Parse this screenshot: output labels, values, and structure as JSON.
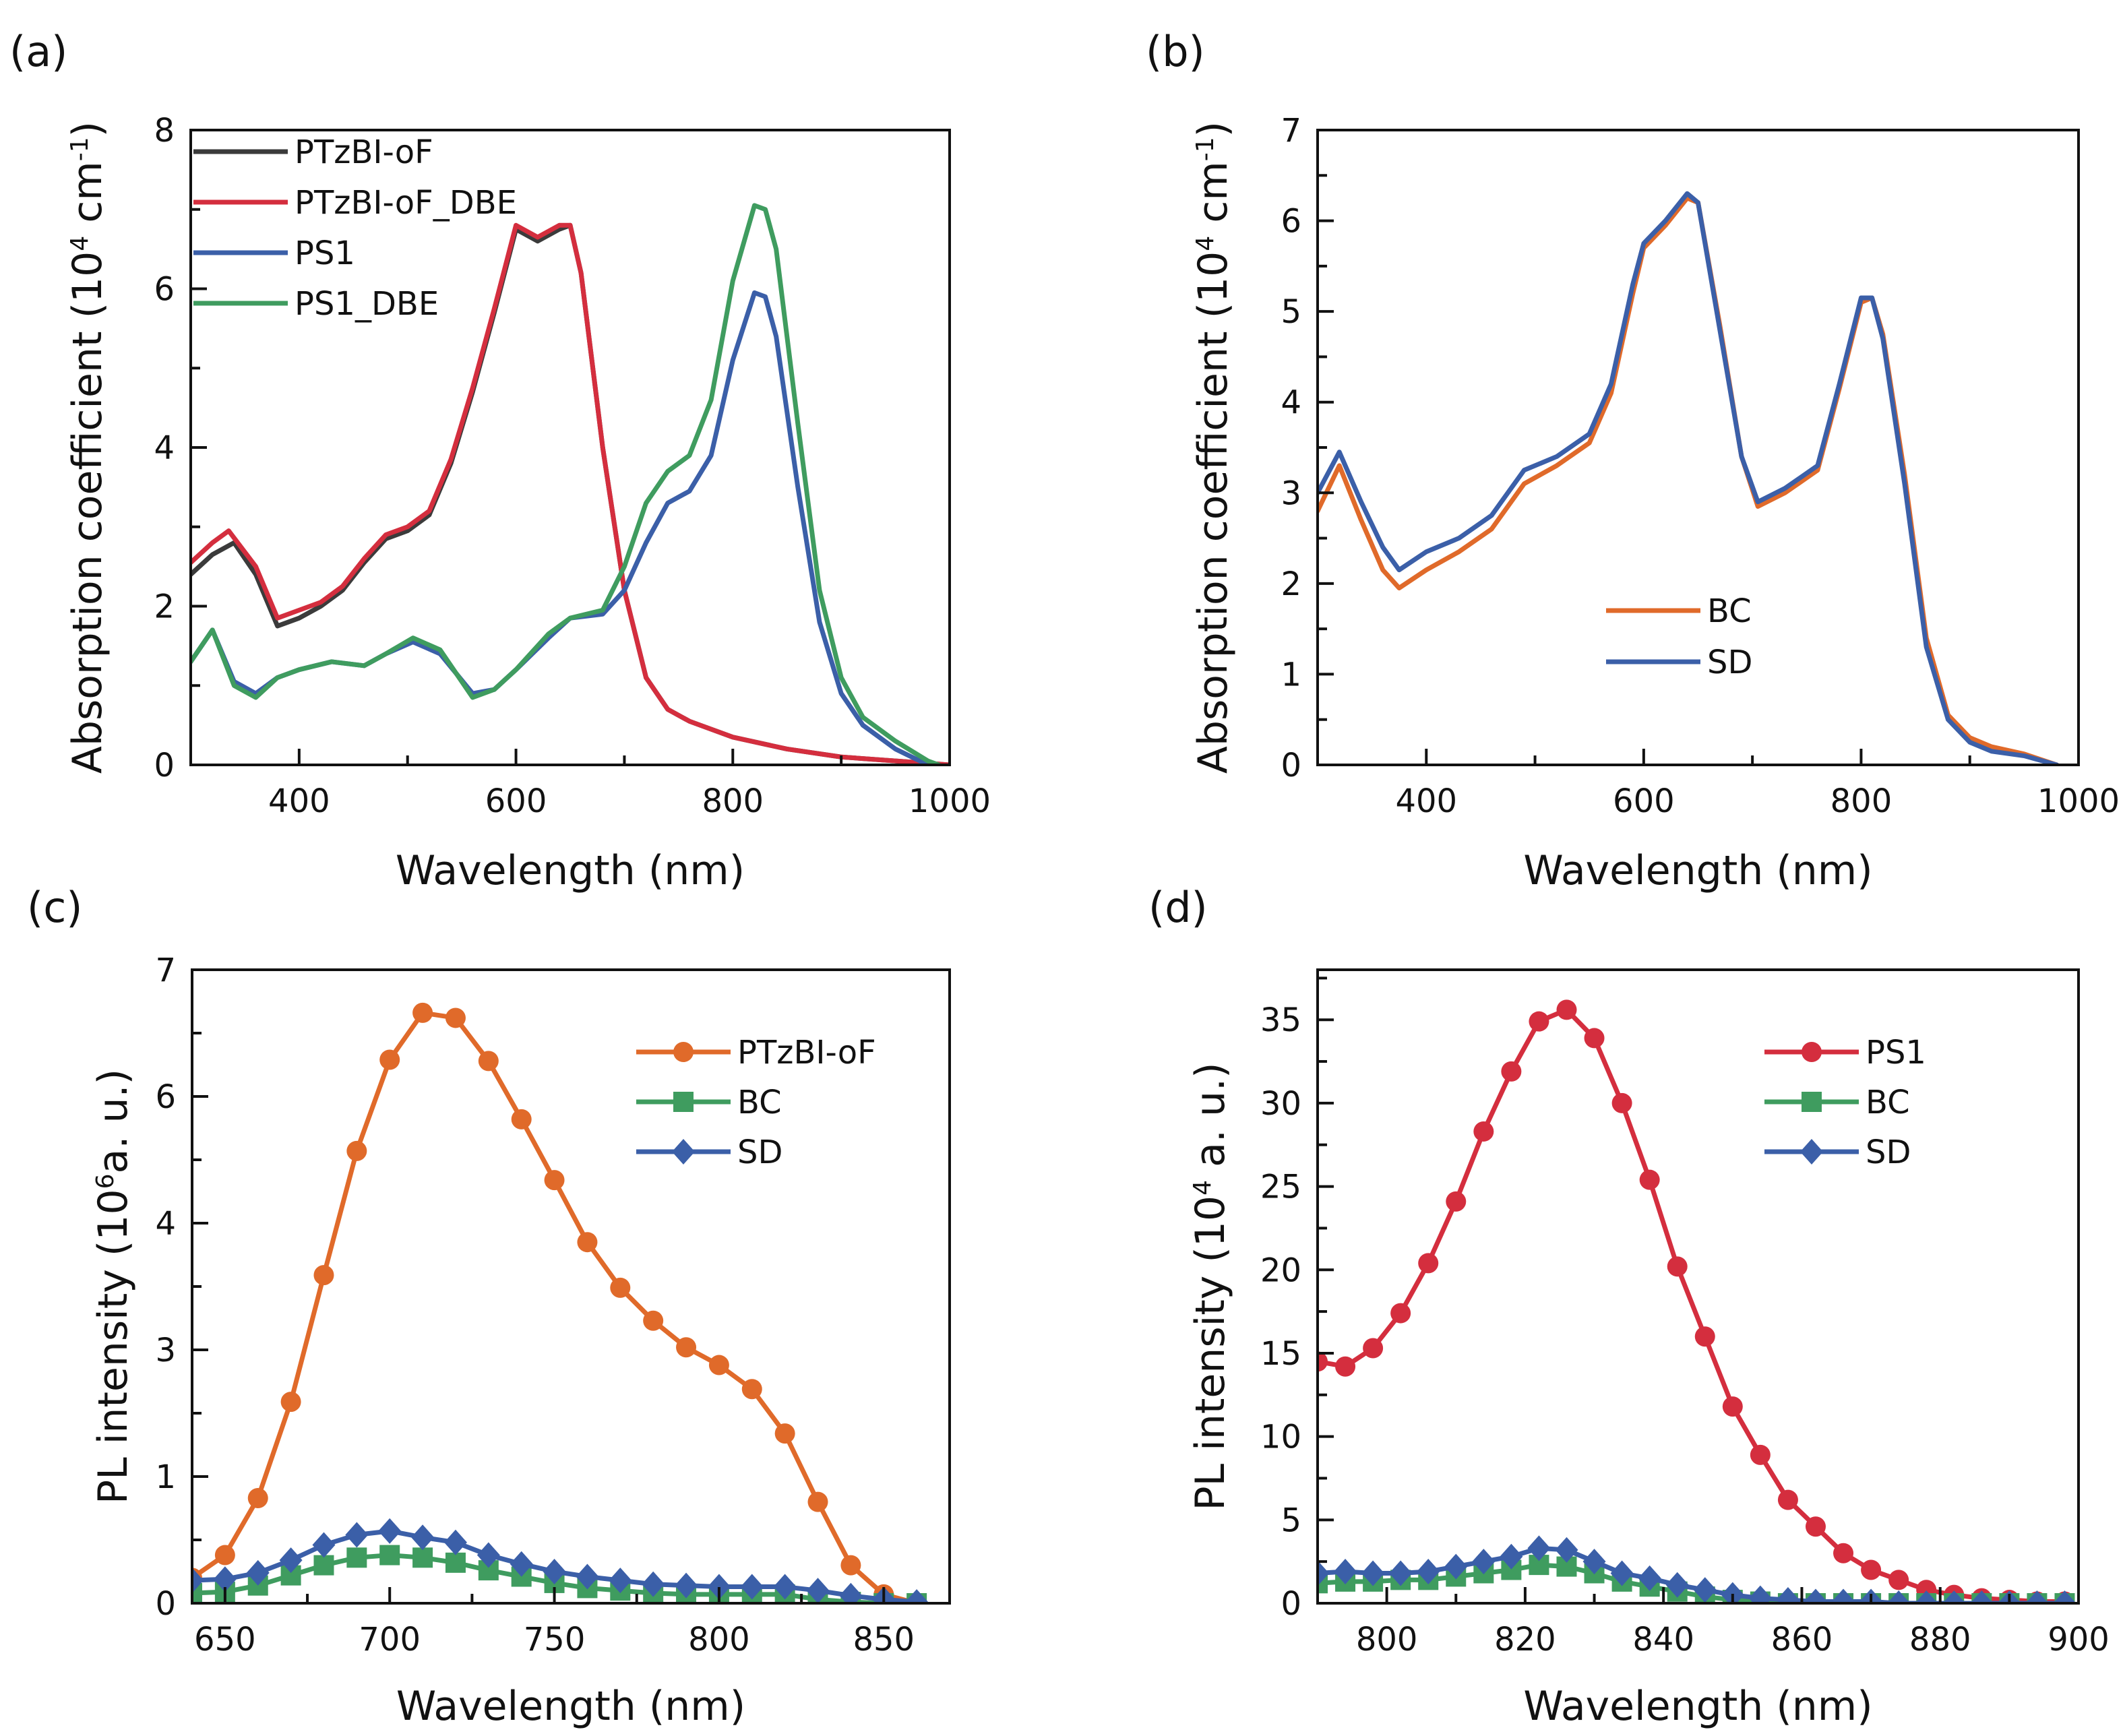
{
  "panel_labels": [
    "(a)",
    "(b)",
    "(c)",
    "(d)"
  ],
  "colors": {
    "black": "#3b3b3b",
    "red": "#d42e3e",
    "blue": "#3b5fa8",
    "green": "#3f9c5f",
    "orange": "#e06a2a",
    "axis": "#111111"
  },
  "chart_data": [
    {
      "type": "line",
      "xlabel": "Wavelength (nm)",
      "ylabel": {
        "pre": "Absorption coefficient (10",
        "sup": "4",
        "mid": " cm",
        "sup2": "-1",
        "post": ")"
      },
      "xlim": [
        300,
        1000
      ],
      "ylim": [
        0,
        8
      ],
      "xticks": [
        400,
        600,
        800,
        1000
      ],
      "yticks": [
        0,
        2,
        4,
        6,
        8
      ],
      "grid": false,
      "legend": "top-left",
      "series": [
        {
          "name": "PTzBI-oF",
          "color": "#3b3b3b",
          "marker": "none",
          "x": [
            300,
            320,
            340,
            360,
            380,
            400,
            420,
            440,
            460,
            480,
            500,
            520,
            540,
            560,
            580,
            600,
            620,
            640,
            650,
            660,
            680,
            700,
            720,
            740,
            760,
            800,
            850,
            900,
            950,
            1000
          ],
          "y": [
            2.4,
            2.65,
            2.8,
            2.4,
            1.75,
            1.85,
            2.0,
            2.2,
            2.55,
            2.85,
            2.95,
            3.15,
            3.8,
            4.7,
            5.7,
            6.75,
            6.6,
            6.75,
            6.8,
            6.2,
            4.0,
            2.2,
            1.1,
            0.7,
            0.55,
            0.35,
            0.2,
            0.1,
            0.05,
            0
          ]
        },
        {
          "name": "PTzBI-oF_DBE",
          "color": "#d42e3e",
          "marker": "none",
          "x": [
            300,
            320,
            335,
            360,
            380,
            400,
            420,
            440,
            460,
            480,
            500,
            520,
            540,
            560,
            580,
            600,
            620,
            640,
            650,
            660,
            680,
            700,
            720,
            740,
            760,
            800,
            850,
            900,
            950,
            1000
          ],
          "y": [
            2.55,
            2.8,
            2.95,
            2.5,
            1.85,
            1.95,
            2.05,
            2.25,
            2.6,
            2.9,
            3.0,
            3.2,
            3.85,
            4.75,
            5.75,
            6.8,
            6.65,
            6.8,
            6.8,
            6.2,
            4.0,
            2.2,
            1.1,
            0.7,
            0.55,
            0.35,
            0.2,
            0.1,
            0.05,
            0
          ]
        },
        {
          "name": "PS1",
          "color": "#3b5fa8",
          "marker": "none",
          "x": [
            300,
            320,
            340,
            360,
            380,
            400,
            430,
            460,
            480,
            505,
            530,
            560,
            580,
            600,
            630,
            650,
            680,
            700,
            720,
            740,
            760,
            780,
            800,
            820,
            830,
            840,
            860,
            880,
            900,
            920,
            950,
            980
          ],
          "y": [
            1.3,
            1.7,
            1.05,
            0.9,
            1.1,
            1.2,
            1.3,
            1.25,
            1.4,
            1.55,
            1.4,
            0.9,
            0.95,
            1.2,
            1.6,
            1.85,
            1.9,
            2.2,
            2.8,
            3.3,
            3.45,
            3.9,
            5.1,
            5.95,
            5.9,
            5.4,
            3.5,
            1.8,
            0.9,
            0.5,
            0.2,
            0
          ]
        },
        {
          "name": "PS1_DBE",
          "color": "#3f9c5f",
          "marker": "none",
          "x": [
            300,
            320,
            340,
            360,
            380,
            400,
            430,
            460,
            480,
            505,
            530,
            560,
            580,
            600,
            630,
            650,
            680,
            700,
            720,
            740,
            760,
            780,
            800,
            820,
            830,
            840,
            860,
            880,
            900,
            920,
            950,
            980,
            990
          ],
          "y": [
            1.3,
            1.7,
            1.0,
            0.85,
            1.1,
            1.2,
            1.3,
            1.25,
            1.4,
            1.6,
            1.45,
            0.85,
            0.95,
            1.2,
            1.65,
            1.85,
            1.95,
            2.5,
            3.3,
            3.7,
            3.9,
            4.6,
            6.1,
            7.05,
            7.0,
            6.5,
            4.3,
            2.2,
            1.1,
            0.6,
            0.3,
            0.05,
            0
          ]
        }
      ]
    },
    {
      "type": "line",
      "xlabel": "Wavelength (nm)",
      "ylabel": {
        "pre": "Absorption coefficient (10",
        "sup": "4",
        "mid": " cm",
        "sup2": "-1",
        "post": ")"
      },
      "xlim": [
        300,
        1000
      ],
      "ylim": [
        0,
        7
      ],
      "xticks": [
        400,
        600,
        800,
        1000
      ],
      "yticks": [
        0,
        1,
        2,
        3,
        4,
        5,
        6,
        7
      ],
      "grid": false,
      "legend": "center-left",
      "series": [
        {
          "name": "BC",
          "color": "#e06a2a",
          "marker": "none",
          "x": [
            300,
            320,
            340,
            360,
            375,
            400,
            430,
            460,
            490,
            520,
            550,
            570,
            590,
            600,
            620,
            640,
            650,
            670,
            690,
            705,
            730,
            760,
            780,
            800,
            810,
            820,
            840,
            860,
            880,
            900,
            920,
            950,
            980
          ],
          "y": [
            2.8,
            3.3,
            2.7,
            2.15,
            1.95,
            2.15,
            2.35,
            2.6,
            3.1,
            3.3,
            3.55,
            4.1,
            5.2,
            5.7,
            5.95,
            6.25,
            6.2,
            4.85,
            3.4,
            2.85,
            3.0,
            3.25,
            4.15,
            5.1,
            5.15,
            4.75,
            3.2,
            1.4,
            0.55,
            0.3,
            0.2,
            0.12,
            0
          ]
        },
        {
          "name": "SD",
          "color": "#3b5fa8",
          "marker": "none",
          "x": [
            300,
            320,
            340,
            360,
            375,
            400,
            430,
            460,
            490,
            520,
            550,
            570,
            590,
            600,
            620,
            640,
            650,
            670,
            690,
            705,
            730,
            760,
            780,
            800,
            810,
            820,
            840,
            860,
            880,
            900,
            920,
            950,
            980
          ],
          "y": [
            3.0,
            3.45,
            2.9,
            2.4,
            2.15,
            2.35,
            2.5,
            2.75,
            3.25,
            3.4,
            3.65,
            4.2,
            5.3,
            5.75,
            6.0,
            6.3,
            6.2,
            4.8,
            3.4,
            2.9,
            3.05,
            3.3,
            4.2,
            5.15,
            5.15,
            4.7,
            3.1,
            1.3,
            0.5,
            0.25,
            0.15,
            0.1,
            0
          ]
        }
      ]
    },
    {
      "type": "line",
      "xlabel": "Wavelength (nm)",
      "ylabel": {
        "pre": "PL intensity (10",
        "sup": "6",
        "mid": "a. u.)",
        "sup2": "",
        "post": ""
      },
      "xlim": [
        640,
        870
      ],
      "ylim": [
        0,
        7
      ],
      "xticks": [
        650,
        700,
        750,
        800,
        850
      ],
      "yticks": [
        0,
        1,
        3,
        4,
        6,
        7
      ],
      "grid": false,
      "legend": "top-right",
      "series": [
        {
          "name": "PTzBI-oF",
          "color": "#e06a2a",
          "marker": "circle",
          "x": [
            640,
            650,
            660,
            670,
            680,
            690,
            700,
            710,
            720,
            730,
            740,
            750,
            760,
            770,
            780,
            790,
            800,
            810,
            820,
            830,
            840,
            850,
            860
          ],
          "y": [
            0.2,
            0.38,
            0.83,
            2.18,
            3.59,
            5.14,
            6.29,
            6.66,
            6.62,
            6.28,
            5.64,
            4.68,
            3.85,
            3.49,
            3.23,
            3.02,
            2.76,
            2.38,
            1.68,
            0.8,
            0.3,
            0.07,
            0
          ]
        },
        {
          "name": "BC",
          "color": "#3f9c5f",
          "marker": "square",
          "x": [
            640,
            650,
            660,
            670,
            680,
            690,
            700,
            710,
            720,
            730,
            740,
            750,
            760,
            770,
            780,
            790,
            800,
            810,
            820,
            830,
            840,
            850,
            860
          ],
          "y": [
            0.08,
            0.09,
            0.14,
            0.22,
            0.3,
            0.36,
            0.38,
            0.36,
            0.32,
            0.26,
            0.21,
            0.16,
            0.12,
            0.1,
            0.08,
            0.07,
            0.07,
            0.07,
            0.07,
            0.03,
            0.01,
            0,
            0
          ]
        },
        {
          "name": "SD",
          "color": "#3b5fa8",
          "marker": "diamond",
          "x": [
            640,
            650,
            660,
            670,
            680,
            690,
            700,
            710,
            720,
            730,
            740,
            750,
            760,
            770,
            780,
            790,
            800,
            810,
            820,
            830,
            840,
            850,
            860
          ],
          "y": [
            0.18,
            0.19,
            0.24,
            0.34,
            0.46,
            0.54,
            0.57,
            0.52,
            0.48,
            0.38,
            0.31,
            0.25,
            0.21,
            0.18,
            0.15,
            0.14,
            0.13,
            0.13,
            0.13,
            0.1,
            0.06,
            0.03,
            0.01
          ]
        }
      ]
    },
    {
      "type": "line",
      "xlabel": "Wavelength (nm)",
      "ylabel": {
        "pre": "PL intensity (10",
        "sup": "4",
        "mid": " a. u.)",
        "sup2": "",
        "post": ""
      },
      "xlim": [
        790,
        900
      ],
      "ylim": [
        0,
        38
      ],
      "xticks": [
        800,
        820,
        840,
        860,
        880,
        900
      ],
      "yticks": [
        0,
        5,
        10,
        15,
        20,
        25,
        30,
        35
      ],
      "grid": false,
      "legend": "top-right",
      "series": [
        {
          "name": "PS1",
          "color": "#d42e3e",
          "marker": "circle",
          "x": [
            790,
            794,
            798,
            802,
            806,
            810,
            814,
            818,
            822,
            826,
            830,
            834,
            838,
            842,
            846,
            850,
            854,
            858,
            862,
            866,
            870,
            874,
            878,
            882,
            886,
            890,
            894,
            898
          ],
          "y": [
            14.5,
            14.2,
            15.3,
            17.4,
            20.4,
            24.1,
            28.3,
            31.9,
            34.9,
            35.6,
            33.9,
            30.0,
            25.4,
            20.2,
            16.0,
            11.8,
            8.9,
            6.2,
            4.6,
            3.0,
            2.0,
            1.4,
            0.8,
            0.5,
            0.3,
            0.2,
            0.1,
            0.1
          ]
        },
        {
          "name": "BC",
          "color": "#3f9c5f",
          "marker": "square",
          "x": [
            790,
            794,
            798,
            802,
            806,
            810,
            814,
            818,
            822,
            826,
            830,
            834,
            838,
            842,
            846,
            850,
            854,
            858,
            862,
            866,
            870,
            874,
            878,
            882,
            886,
            890,
            894,
            898
          ],
          "y": [
            1.2,
            1.3,
            1.3,
            1.4,
            1.4,
            1.6,
            1.8,
            2.0,
            2.3,
            2.2,
            1.8,
            1.3,
            1.0,
            0.7,
            0.4,
            0.2,
            0.1,
            0,
            0,
            0,
            0,
            0,
            0,
            0,
            0,
            0,
            0,
            0
          ]
        },
        {
          "name": "SD",
          "color": "#3b5fa8",
          "marker": "diamond",
          "x": [
            790,
            794,
            798,
            802,
            806,
            810,
            814,
            818,
            822,
            826,
            830,
            834,
            838,
            842,
            846,
            850,
            854,
            858,
            862,
            866,
            870,
            874,
            878,
            882,
            886,
            890,
            894,
            898
          ],
          "y": [
            1.8,
            1.9,
            1.8,
            1.8,
            1.9,
            2.2,
            2.5,
            2.8,
            3.3,
            3.2,
            2.5,
            1.8,
            1.5,
            1.1,
            0.8,
            0.5,
            0.3,
            0.2,
            0.1,
            0.1,
            0.1,
            0,
            0,
            0,
            0,
            0,
            0,
            0
          ]
        }
      ]
    }
  ]
}
